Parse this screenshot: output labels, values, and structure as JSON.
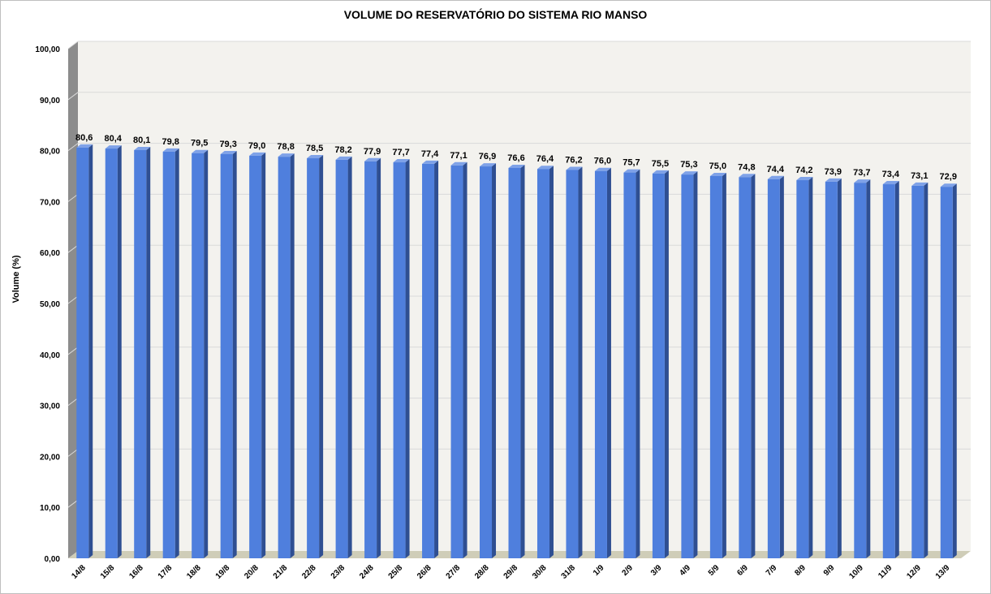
{
  "chart_data": {
    "type": "bar",
    "title": "VOLUME DO RESERVATÓRIO DO SISTEMA RIO MANSO",
    "ylabel": "Volume (%)",
    "xlabel": "",
    "ylim": [
      0,
      100
    ],
    "y_ticks": [
      "0,00",
      "10,00",
      "20,00",
      "30,00",
      "40,00",
      "50,00",
      "60,00",
      "70,00",
      "80,00",
      "90,00",
      "100,00"
    ],
    "grid": true,
    "categories": [
      "14/8",
      "15/8",
      "16/8",
      "17/8",
      "18/8",
      "19/8",
      "20/8",
      "21/8",
      "22/8",
      "23/8",
      "24/8",
      "25/8",
      "26/8",
      "27/8",
      "28/8",
      "29/8",
      "30/8",
      "31/8",
      "1/9",
      "2/9",
      "3/9",
      "4/9",
      "5/9",
      "6/9",
      "7/9",
      "8/9",
      "9/9",
      "10/9",
      "11/9",
      "12/9",
      "13/9"
    ],
    "values": [
      80.6,
      80.4,
      80.1,
      79.8,
      79.5,
      79.3,
      79.0,
      78.8,
      78.5,
      78.2,
      77.9,
      77.7,
      77.4,
      77.1,
      76.9,
      76.6,
      76.4,
      76.2,
      76.0,
      75.7,
      75.5,
      75.3,
      75.0,
      74.8,
      74.4,
      74.2,
      73.9,
      73.7,
      73.4,
      73.1,
      72.9
    ],
    "data_labels": [
      "80,6",
      "80,4",
      "80,1",
      "79,8",
      "79,5",
      "79,3",
      "79,0",
      "78,8",
      "78,5",
      "78,2",
      "77,9",
      "77,7",
      "77,4",
      "77,1",
      "76,9",
      "76,6",
      "76,4",
      "76,2",
      "76,0",
      "75,7",
      "75,5",
      "75,3",
      "75,0",
      "74,8",
      "74,4",
      "74,2",
      "73,9",
      "73,7",
      "73,4",
      "73,1",
      "72,9"
    ],
    "colors": {
      "bar_front": "#4f7fdd",
      "bar_side": "#2f4f92",
      "bar_top": "#7fa2e8",
      "plot_back": "#f3f2ee",
      "plot_wall": "#8c8c8c",
      "plot_floor": "#cfcdb8",
      "gridline": "#d9d9d9"
    }
  }
}
